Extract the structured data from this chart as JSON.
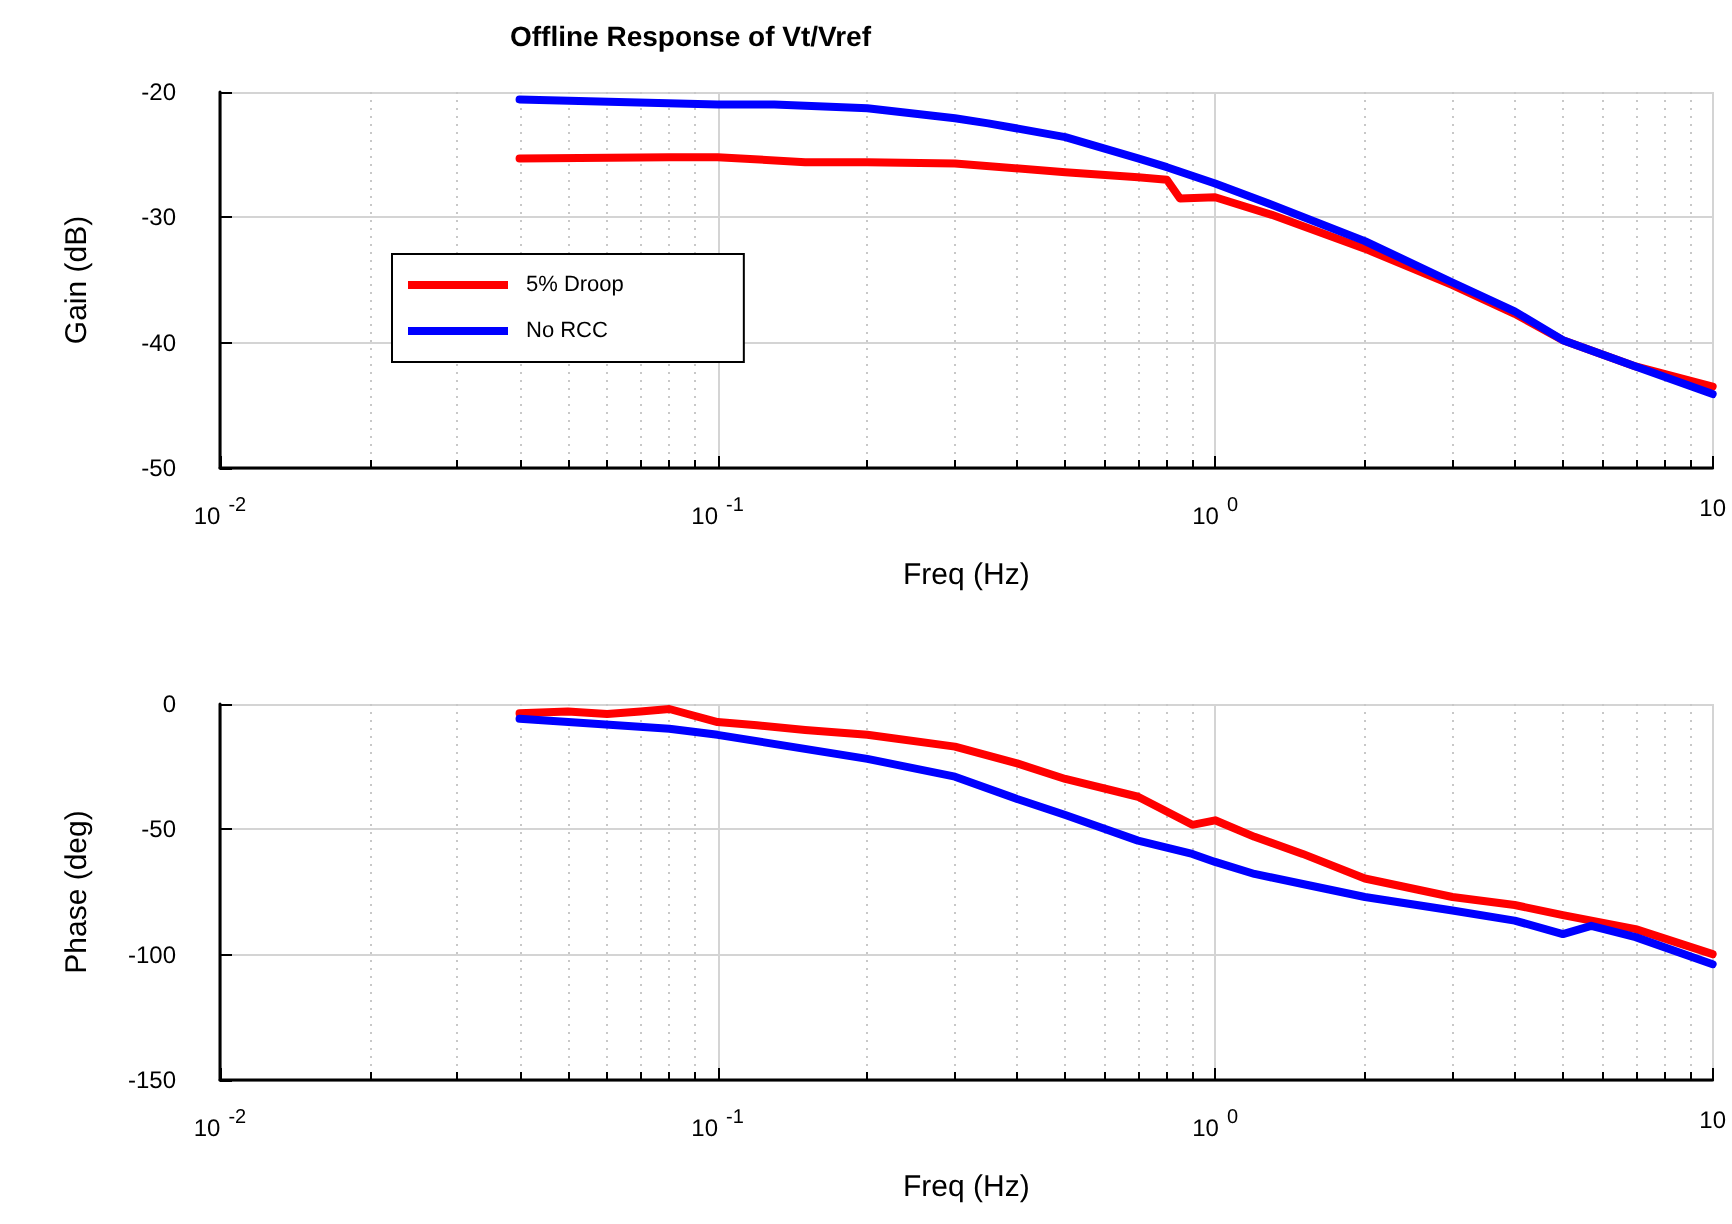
{
  "chart_data": [
    {
      "type": "line",
      "title": "Offline Response of Vt/Vref",
      "xlabel": "Freq (Hz)",
      "ylabel": "Gain (dB)",
      "log": "x",
      "xlim": [
        0.01,
        10
      ],
      "xticks": [
        {
          "value": 0.01,
          "label": "10$^{-2}$"
        },
        {
          "value": 0.1,
          "label": "10$^{-1}$"
        },
        {
          "value": 1,
          "label": "10$^{0}$"
        },
        {
          "value": 10,
          "label": "10"
        }
      ],
      "ylim": [
        -50,
        -20
      ],
      "yticks": [
        -50,
        -40,
        -30,
        -20
      ],
      "grid": true,
      "legend": "left",
      "line_style": "solid",
      "marker": "none",
      "series": [
        {
          "name": "5% Droop",
          "color": "#ff0000",
          "x": [
            0.04,
            0.08,
            0.1,
            0.15,
            0.2,
            0.3,
            0.5,
            0.7,
            0.8,
            0.85,
            1,
            1.3,
            2,
            3,
            4,
            5,
            7,
            10
          ],
          "values": [
            -25.3,
            -25.2,
            -25.2,
            -25.6,
            -25.6,
            -25.7,
            -26.4,
            -26.8,
            -27.0,
            -28.5,
            -28.4,
            -29.8,
            -32.5,
            -35.4,
            -37.7,
            -39.8,
            -41.9,
            -43.5
          ]
        },
        {
          "name": "No RCC",
          "color": "#0000ff",
          "x": [
            0.04,
            0.1,
            0.13,
            0.2,
            0.3,
            0.35,
            0.5,
            0.7,
            0.8,
            1,
            1.3,
            2,
            3,
            4,
            5,
            7,
            10
          ],
          "values": [
            -20.6,
            -21.0,
            -21.0,
            -21.3,
            -22.1,
            -22.5,
            -23.6,
            -25.3,
            -26.0,
            -27.3,
            -29.0,
            -31.9,
            -35.2,
            -37.5,
            -39.8,
            -41.9,
            -44.1
          ]
        }
      ]
    },
    {
      "type": "line",
      "xlabel": "Freq (Hz)",
      "ylabel": "Phase (deg)",
      "log": "x",
      "xlim": [
        0.01,
        10
      ],
      "xticks": [
        {
          "value": 0.01,
          "label": "10$^{-2}$"
        },
        {
          "value": 0.1,
          "label": "10$^{-1}$"
        },
        {
          "value": 1,
          "label": "10$^{0}$"
        },
        {
          "value": 10,
          "label": "10"
        }
      ],
      "ylim": [
        -150,
        0
      ],
      "yticks": [
        -150,
        -100,
        -50,
        0
      ],
      "grid": true,
      "line_style": "solid",
      "marker": "none",
      "series": [
        {
          "color": "#ff0000",
          "x": [
            0.04,
            0.05,
            0.06,
            0.07,
            0.08,
            0.1,
            0.12,
            0.15,
            0.2,
            0.3,
            0.4,
            0.5,
            0.7,
            0.9,
            1,
            1.2,
            1.5,
            2,
            3,
            4,
            5,
            7,
            10
          ],
          "values": [
            -3.7,
            -3,
            -4,
            -3,
            -2,
            -7.2,
            -8.5,
            -10.4,
            -12.3,
            -17,
            -23.7,
            -29.9,
            -37,
            -48.2,
            -46.4,
            -53,
            -59.8,
            -69.6,
            -77,
            -80.2,
            -84.2,
            -89.8,
            -99.8
          ]
        },
        {
          "color": "#0000ff",
          "x": [
            0.04,
            0.08,
            0.1,
            0.2,
            0.3,
            0.4,
            0.5,
            0.7,
            0.9,
            1,
            1.2,
            1.5,
            2,
            3,
            4,
            5,
            5.7,
            7,
            10
          ],
          "values": [
            -5.9,
            -9.9,
            -12.3,
            -21.9,
            -29,
            -37.9,
            -44.3,
            -54.5,
            -59.8,
            -63,
            -67.8,
            -71.8,
            -77,
            -82.4,
            -86.4,
            -91.8,
            -88.5,
            -93,
            -103.8
          ]
        }
      ]
    }
  ]
}
